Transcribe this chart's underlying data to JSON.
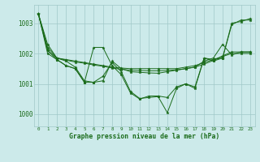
{
  "title": "Graphe pression niveau de la mer (hPa)",
  "background_color": "#cceaea",
  "line_color": "#1a6b1a",
  "grid_color": "#a0c8c8",
  "text_color": "#1a6b1a",
  "xlim": [
    -0.5,
    23.5
  ],
  "ylim": [
    999.6,
    1003.6
  ],
  "yticks": [
    1000,
    1001,
    1002,
    1003
  ],
  "xtick_labels": [
    "0",
    "1",
    "2",
    "3",
    "4",
    "5",
    "6",
    "7",
    "8",
    "9",
    "10",
    "11",
    "12",
    "13",
    "14",
    "15",
    "16",
    "17",
    "18",
    "19",
    "20",
    "21",
    "22",
    "23"
  ],
  "series_smooth1": [
    1003.3,
    1002.3,
    1001.85,
    1001.8,
    1001.75,
    1001.7,
    1001.65,
    1001.6,
    1001.55,
    1001.52,
    1001.5,
    1001.5,
    1001.5,
    1001.5,
    1001.5,
    1001.5,
    1001.55,
    1001.6,
    1001.7,
    1001.8,
    1001.9,
    1002.0,
    1002.0,
    1002.0
  ],
  "series_smooth2": [
    1003.3,
    1002.1,
    1001.85,
    1001.78,
    1001.72,
    1001.68,
    1001.62,
    1001.58,
    1001.52,
    1001.48,
    1001.45,
    1001.44,
    1001.43,
    1001.43,
    1001.44,
    1001.46,
    1001.5,
    1001.55,
    1001.65,
    1001.77,
    1001.92,
    1002.05,
    1002.05,
    1002.05
  ],
  "series_raw1": [
    1003.3,
    1002.2,
    1001.85,
    1001.75,
    1001.55,
    1001.1,
    1001.05,
    1001.1,
    1001.75,
    1001.5,
    1001.4,
    1001.38,
    1001.36,
    1001.35,
    1001.4,
    1001.45,
    1001.5,
    1001.55,
    1001.75,
    1001.85,
    1002.3,
    1001.95,
    1002.05,
    1002.05
  ],
  "series_raw2": [
    1003.3,
    1002.1,
    1001.8,
    1001.6,
    1001.5,
    1001.05,
    1002.2,
    1002.2,
    1001.6,
    1001.3,
    1000.7,
    1000.5,
    1000.6,
    1000.6,
    1000.55,
    1000.9,
    1001.0,
    1000.9,
    1001.85,
    1001.8,
    1001.85,
    1002.95,
    1003.1,
    1003.1
  ],
  "series_raw3": [
    1003.3,
    1002.0,
    1001.8,
    1001.6,
    1001.5,
    1001.05,
    1001.05,
    1001.25,
    1001.7,
    1001.4,
    1000.75,
    1000.52,
    1000.55,
    1000.58,
    1000.05,
    1000.85,
    1001.0,
    1000.85,
    1001.85,
    1001.75,
    1001.85,
    1003.0,
    1003.05,
    1003.15
  ]
}
